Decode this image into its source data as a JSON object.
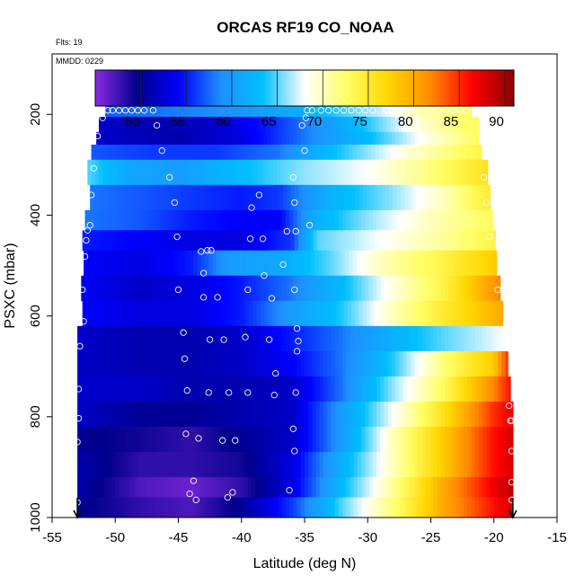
{
  "chart_data": {
    "type": "heatmap",
    "title": "ORCAS RF19 CO_NOAA",
    "flight_note": "Flts: 19",
    "date_note": "MMDD: 0229",
    "xlabel": "Latitude (deg N)",
    "ylabel": "PSXC (mbar)",
    "xlim": [
      -55,
      -15
    ],
    "ylim": [
      1000,
      80
    ],
    "x_ticks": [
      -55,
      -50,
      -45,
      -40,
      -35,
      -30,
      -25,
      -20,
      -15
    ],
    "y_ticks": [
      200,
      400,
      600,
      800,
      1000
    ],
    "colorbar": {
      "range": [
        45,
        91
      ],
      "ticks": [
        50,
        55,
        60,
        65,
        70,
        75,
        80,
        85,
        90
      ],
      "colors": [
        "#8a2be2",
        "#00008b",
        "#0000ff",
        "#1e90ff",
        "#00bfff",
        "#ffffff",
        "#ffff66",
        "#ffd700",
        "#ff8c00",
        "#ff0000",
        "#8b0000"
      ]
    },
    "value_range": [
      45,
      91
    ],
    "rows": [
      {
        "p_top": 180,
        "p_bot": 205,
        "lat_start": -50.8,
        "lat_end": -21.8,
        "keypoints": [
          [
            -50.8,
            57
          ],
          [
            -46,
            58
          ],
          [
            -41,
            59
          ],
          [
            -35,
            62
          ],
          [
            -29,
            67
          ],
          [
            -25,
            71
          ],
          [
            -21.8,
            73
          ]
        ]
      },
      {
        "p_top": 205,
        "p_bot": 235,
        "lat_start": -51.3,
        "lat_end": -21.2,
        "keypoints": [
          [
            -51.3,
            52
          ],
          [
            -47,
            51
          ],
          [
            -42,
            52
          ],
          [
            -38,
            55
          ],
          [
            -33,
            60
          ],
          [
            -27,
            68
          ],
          [
            -23,
            72
          ],
          [
            -21.2,
            73
          ]
        ]
      },
      {
        "p_top": 235,
        "p_bot": 260,
        "lat_start": -51.5,
        "lat_end": -21.2,
        "keypoints": [
          [
            -51.5,
            52
          ],
          [
            -45,
            51
          ],
          [
            -40,
            53
          ],
          [
            -35,
            58
          ],
          [
            -30,
            63
          ],
          [
            -26,
            68
          ],
          [
            -21.2,
            73
          ]
        ]
      },
      {
        "p_top": 260,
        "p_bot": 290,
        "lat_start": -51.9,
        "lat_end": -21.0,
        "keypoints": [
          [
            -51.9,
            57
          ],
          [
            -47,
            56
          ],
          [
            -42,
            56
          ],
          [
            -37,
            58
          ],
          [
            -33,
            63
          ],
          [
            -27,
            69
          ],
          [
            -21,
            74
          ]
        ]
      },
      {
        "p_top": 290,
        "p_bot": 340,
        "lat_start": -52.2,
        "lat_end": -20.5,
        "keypoints": [
          [
            -52.2,
            65
          ],
          [
            -49,
            61
          ],
          [
            -45,
            60
          ],
          [
            -40,
            63
          ],
          [
            -35,
            66
          ],
          [
            -30,
            68
          ],
          [
            -25,
            72
          ],
          [
            -20.5,
            76
          ]
        ]
      },
      {
        "p_top": 340,
        "p_bot": 390,
        "lat_start": -52.0,
        "lat_end": -20.3,
        "keypoints": [
          [
            -52,
            58
          ],
          [
            -48,
            57
          ],
          [
            -44,
            56
          ],
          [
            -40,
            55
          ],
          [
            -37,
            56
          ],
          [
            -33,
            62
          ],
          [
            -28,
            66
          ],
          [
            -24,
            70
          ],
          [
            -20.3,
            75
          ]
        ]
      },
      {
        "p_top": 390,
        "p_bot": 430,
        "lat_start": -52.4,
        "lat_end": -20.1,
        "keypoints": [
          [
            -52.4,
            58
          ],
          [
            -48,
            57
          ],
          [
            -44,
            55
          ],
          [
            -40,
            54
          ],
          [
            -37,
            54
          ],
          [
            -34,
            62
          ],
          [
            -30,
            66
          ],
          [
            -25,
            70
          ],
          [
            -20.1,
            73
          ]
        ]
      },
      {
        "p_top": 430,
        "p_bot": 470,
        "lat_start": -52.6,
        "lat_end": -19.9,
        "keypoints": [
          [
            -52.6,
            55
          ],
          [
            -48,
            54
          ],
          [
            -44,
            53
          ],
          [
            -40,
            53
          ],
          [
            -36,
            56
          ],
          [
            -34,
            65
          ],
          [
            -29,
            68
          ],
          [
            -24,
            71
          ],
          [
            -19.9,
            74
          ]
        ]
      },
      {
        "p_top": 470,
        "p_bot": 520,
        "lat_start": -52.5,
        "lat_end": -19.8,
        "keypoints": [
          [
            -52.5,
            54
          ],
          [
            -48,
            53
          ],
          [
            -44,
            55
          ],
          [
            -41,
            60
          ],
          [
            -37,
            61
          ],
          [
            -33,
            65
          ],
          [
            -29,
            70
          ],
          [
            -24,
            74
          ],
          [
            -19.8,
            78
          ]
        ]
      },
      {
        "p_top": 520,
        "p_bot": 570,
        "lat_start": -52.7,
        "lat_end": -19.5,
        "keypoints": [
          [
            -52.7,
            54
          ],
          [
            -48,
            52
          ],
          [
            -44,
            53
          ],
          [
            -40,
            55
          ],
          [
            -36,
            58
          ],
          [
            -32,
            63
          ],
          [
            -28,
            69
          ],
          [
            -24,
            74
          ],
          [
            -19.5,
            82
          ]
        ]
      },
      {
        "p_top": 570,
        "p_bot": 620,
        "lat_start": -52.6,
        "lat_end": -19.3,
        "keypoints": [
          [
            -52.6,
            54
          ],
          [
            -48,
            53
          ],
          [
            -44,
            53
          ],
          [
            -40,
            55
          ],
          [
            -36,
            60
          ],
          [
            -32,
            64
          ],
          [
            -28,
            70
          ],
          [
            -24,
            75
          ],
          [
            -19.3,
            80
          ]
        ]
      },
      {
        "p_top": 620,
        "p_bot": 670,
        "lat_start": -53.0,
        "lat_end": -19.1,
        "keypoints": [
          [
            -53,
            52
          ],
          [
            -48,
            51
          ],
          [
            -44,
            51
          ],
          [
            -40,
            52
          ],
          [
            -36,
            55
          ],
          [
            -32,
            58
          ],
          [
            -28,
            62
          ],
          [
            -24,
            65
          ],
          [
            -19.1,
            68
          ]
        ]
      },
      {
        "p_top": 670,
        "p_bot": 720,
        "lat_start": -53.0,
        "lat_end": -18.9,
        "keypoints": [
          [
            -53,
            52
          ],
          [
            -48,
            51
          ],
          [
            -44,
            51
          ],
          [
            -40,
            52
          ],
          [
            -36,
            54
          ],
          [
            -32,
            58
          ],
          [
            -28,
            64
          ],
          [
            -24,
            72
          ],
          [
            -20,
            78
          ],
          [
            -18.9,
            85
          ]
        ]
      },
      {
        "p_top": 720,
        "p_bot": 770,
        "lat_start": -53.0,
        "lat_end": -18.7,
        "keypoints": [
          [
            -53,
            52
          ],
          [
            -48,
            52
          ],
          [
            -44,
            51
          ],
          [
            -40,
            51
          ],
          [
            -36,
            52
          ],
          [
            -32,
            58
          ],
          [
            -28,
            66
          ],
          [
            -24,
            73
          ],
          [
            -20,
            82
          ],
          [
            -18.7,
            86
          ]
        ]
      },
      {
        "p_top": 770,
        "p_bot": 820,
        "lat_start": -53.0,
        "lat_end": -18.5,
        "keypoints": [
          [
            -53,
            52
          ],
          [
            -48,
            50
          ],
          [
            -44,
            50
          ],
          [
            -40,
            51
          ],
          [
            -36,
            52
          ],
          [
            -32,
            60
          ],
          [
            -28,
            68
          ],
          [
            -24,
            76
          ],
          [
            -20,
            85
          ],
          [
            -18.5,
            87
          ]
        ]
      },
      {
        "p_top": 820,
        "p_bot": 870,
        "lat_start": -53.0,
        "lat_end": -18.5,
        "keypoints": [
          [
            -53,
            50
          ],
          [
            -48,
            49
          ],
          [
            -44,
            48
          ],
          [
            -40,
            50
          ],
          [
            -36,
            52
          ],
          [
            -32,
            60
          ],
          [
            -28,
            70
          ],
          [
            -24,
            78
          ],
          [
            -20,
            86
          ],
          [
            -18.5,
            88
          ]
        ]
      },
      {
        "p_top": 870,
        "p_bot": 920,
        "lat_start": -53.0,
        "lat_end": -18.5,
        "keypoints": [
          [
            -53,
            51
          ],
          [
            -48,
            48
          ],
          [
            -44,
            48
          ],
          [
            -40,
            49
          ],
          [
            -36,
            53
          ],
          [
            -32,
            62
          ],
          [
            -28,
            70
          ],
          [
            -24,
            78
          ],
          [
            -20,
            86
          ],
          [
            -18.5,
            88
          ]
        ]
      },
      {
        "p_top": 920,
        "p_bot": 960,
        "lat_start": -53.0,
        "lat_end": -18.5,
        "keypoints": [
          [
            -53,
            51
          ],
          [
            -48,
            47
          ],
          [
            -44,
            46
          ],
          [
            -40,
            48
          ],
          [
            -36,
            53
          ],
          [
            -32,
            63
          ],
          [
            -28,
            71
          ],
          [
            -24,
            80
          ],
          [
            -20,
            87
          ],
          [
            -18.5,
            89
          ]
        ]
      },
      {
        "p_top": 960,
        "p_bot": 1000,
        "lat_start": -53.0,
        "lat_end": -18.5,
        "keypoints": [
          [
            -53,
            50
          ],
          [
            -48,
            48
          ],
          [
            -44,
            47
          ],
          [
            -40,
            50
          ],
          [
            -36,
            56
          ],
          [
            -32,
            65
          ],
          [
            -28,
            72
          ],
          [
            -24,
            80
          ],
          [
            -20,
            86
          ],
          [
            -18.5,
            88
          ]
        ]
      }
    ],
    "sample_points": [
      [
        -50.6,
        192
      ],
      [
        -50.2,
        192
      ],
      [
        -49.7,
        192
      ],
      [
        -49.2,
        192
      ],
      [
        -48.7,
        192
      ],
      [
        -48.2,
        192
      ],
      [
        -47.7,
        192
      ],
      [
        -47.0,
        192
      ],
      [
        -34.8,
        192
      ],
      [
        -34.4,
        192
      ],
      [
        -33.7,
        192
      ],
      [
        -33.1,
        192
      ],
      [
        -32.5,
        192
      ],
      [
        -31.9,
        192
      ],
      [
        -31.3,
        192
      ],
      [
        -30.7,
        192
      ],
      [
        -30.2,
        192
      ],
      [
        -29.6,
        192
      ],
      [
        -28.5,
        192
      ],
      [
        -27.7,
        192
      ],
      [
        -27.2,
        192
      ],
      [
        -26.6,
        192
      ],
      [
        -25.1,
        192
      ],
      [
        -24.4,
        192
      ],
      [
        -23.8,
        192
      ],
      [
        -23.2,
        192
      ],
      [
        -22.7,
        192
      ],
      [
        -22.2,
        192
      ],
      [
        -51.0,
        207
      ],
      [
        -34.9,
        207
      ],
      [
        -46.7,
        222
      ],
      [
        -35.2,
        222
      ],
      [
        -51.4,
        243
      ],
      [
        -46.3,
        272
      ],
      [
        -35.0,
        272
      ],
      [
        -51.7,
        307
      ],
      [
        -45.7,
        325
      ],
      [
        -35.9,
        325
      ],
      [
        -20.8,
        325
      ],
      [
        -51.9,
        360
      ],
      [
        -38.6,
        360
      ],
      [
        -45.3,
        375
      ],
      [
        -35.8,
        375
      ],
      [
        -20.6,
        375
      ],
      [
        -39.2,
        385
      ],
      [
        -52.0,
        420
      ],
      [
        -34.6,
        420
      ],
      [
        -52.2,
        430
      ],
      [
        -36.4,
        432
      ],
      [
        -45.1,
        443
      ],
      [
        -39.3,
        447
      ],
      [
        -38.3,
        447
      ],
      [
        -35.7,
        432
      ],
      [
        -20.3,
        443
      ],
      [
        -52.4,
        482
      ],
      [
        -42.7,
        470
      ],
      [
        -42.4,
        470
      ],
      [
        -43.2,
        472
      ],
      [
        -52.3,
        450
      ],
      [
        -36.7,
        498
      ],
      [
        -43.0,
        515
      ],
      [
        -38.2,
        520
      ],
      [
        -52.6,
        548
      ],
      [
        -45.0,
        548
      ],
      [
        -39.5,
        548
      ],
      [
        -35.8,
        548
      ],
      [
        -19.7,
        548
      ],
      [
        -43.0,
        563
      ],
      [
        -41.9,
        563
      ],
      [
        -37.6,
        565
      ],
      [
        -52.5,
        611
      ],
      [
        -35.6,
        625
      ],
      [
        -44.6,
        633
      ],
      [
        -42.5,
        647
      ],
      [
        -41.4,
        647
      ],
      [
        -39.7,
        642
      ],
      [
        -37.8,
        647
      ],
      [
        -35.5,
        650
      ],
      [
        -52.8,
        660
      ],
      [
        -44.5,
        685
      ],
      [
        -35.6,
        670
      ],
      [
        -37.3,
        714
      ],
      [
        -52.9,
        745
      ],
      [
        -44.3,
        748
      ],
      [
        -42.6,
        752
      ],
      [
        -41.0,
        752
      ],
      [
        -39.5,
        752
      ],
      [
        -37.4,
        757
      ],
      [
        -35.7,
        752
      ],
      [
        -18.8,
        778
      ],
      [
        -52.9,
        803
      ],
      [
        -44.4,
        834
      ],
      [
        -43.4,
        843
      ],
      [
        -41.5,
        847
      ],
      [
        -40.5,
        847
      ],
      [
        -35.9,
        824
      ],
      [
        -18.6,
        808
      ],
      [
        -18.7,
        808
      ],
      [
        -53.0,
        850
      ],
      [
        -35.8,
        868
      ],
      [
        -18.6,
        868
      ],
      [
        -43.8,
        927
      ],
      [
        -44.1,
        953
      ],
      [
        -43.6,
        965
      ],
      [
        -41.1,
        960
      ],
      [
        -40.7,
        950
      ],
      [
        -36.2,
        946
      ],
      [
        -18.6,
        930
      ],
      [
        -53.0,
        970
      ],
      [
        -18.6,
        965
      ]
    ],
    "flight_endpoints": [
      -53.0,
      -18.5
    ]
  }
}
